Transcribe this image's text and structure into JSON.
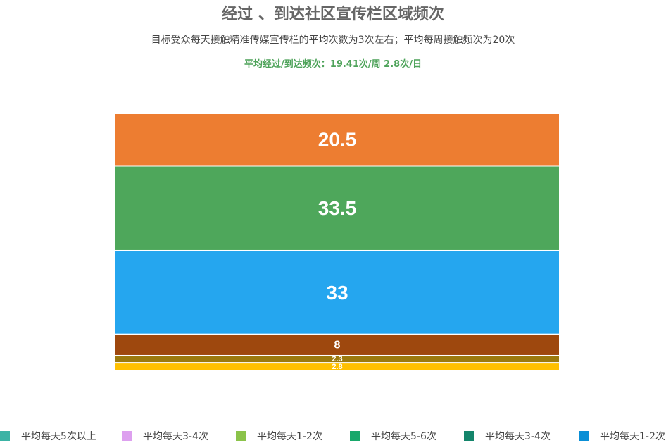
{
  "header": {
    "title": "经过 、到达社区宣传栏区域频次",
    "subtitle": "目标受众每天接触精准传媒宣传栏的平均次数为3次左右；平均每周接触频次为20次",
    "average_line": "平均经过/到达频次：19.41次/周   2.8次/日"
  },
  "chart_data": {
    "type": "bar",
    "stacked": true,
    "orientation": "vertical-stack",
    "segments": [
      {
        "value": 2.8,
        "color": "#ffc000"
      },
      {
        "value": 2.3,
        "color": "#9c7a0e"
      },
      {
        "value": 8,
        "color": "#9e480e"
      },
      {
        "value": 33,
        "color": "#25a6ef"
      },
      {
        "value": 33.5,
        "color": "#4ea75b"
      },
      {
        "value": 20.5,
        "color": "#ed7d31"
      }
    ],
    "legend": [
      {
        "label": "平均每天5次以上",
        "color": "#3bb3a5"
      },
      {
        "label": "平均每天3-4次",
        "color": "#dda0ef"
      },
      {
        "label": "平均每天1-2次",
        "color": "#8bc34a"
      },
      {
        "label": "平均每天5-6次",
        "color": "#18a86b"
      },
      {
        "label": "平均每天3-4次",
        "color": "#14856b"
      },
      {
        "label": "平均每天1-2次",
        "color": "#0a8fd6"
      }
    ],
    "legend_position": "bottom"
  }
}
